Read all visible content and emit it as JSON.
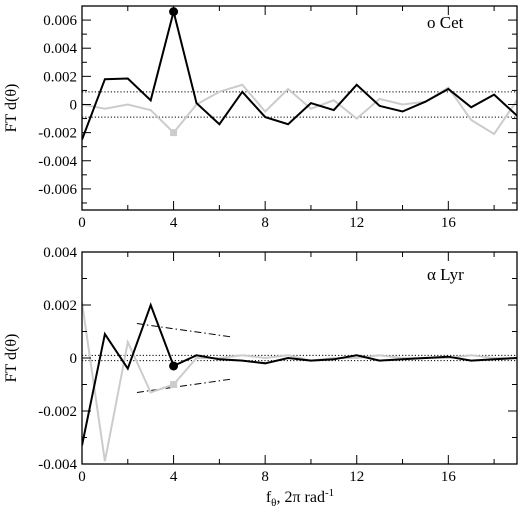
{
  "chart_data": [
    {
      "type": "line",
      "annotation": "o Cet",
      "ylabel": "FT d(θ)",
      "xlabel": "",
      "xlim": [
        0,
        19
      ],
      "ylim": [
        -0.0075,
        0.007
      ],
      "xticks": [
        0,
        4,
        8,
        12,
        16
      ],
      "yticks": [
        -0.006,
        -0.004,
        -0.002,
        0,
        0.002,
        0.004,
        0.006
      ],
      "ytick_labels": [
        "-0.006",
        "-0.004",
        "-0.002",
        "0",
        "0.002",
        "0.004",
        "0.006"
      ],
      "xtick_labels": [
        "0",
        "4",
        "8",
        "12",
        "16"
      ],
      "hlines": [
        0.0009,
        -0.0009
      ],
      "series": [
        {
          "color": "#000000",
          "x": [
            0,
            1,
            2,
            3,
            4,
            5,
            6,
            7,
            8,
            9,
            10,
            11,
            12,
            13,
            14,
            15,
            16,
            17,
            18,
            19
          ],
          "y": [
            -0.0025,
            0.0018,
            0.00185,
            0.0003,
            0.0066,
            0.0001,
            -0.0014,
            0.0009,
            -0.0009,
            -0.0014,
            0.0001,
            -0.0004,
            0.0014,
            -0.0001,
            -0.0005,
            0.0002,
            0.0011,
            -0.0002,
            0.0007,
            -0.0008
          ]
        },
        {
          "color": "#cccccc",
          "x": [
            0,
            1,
            2,
            3,
            4,
            5,
            6,
            7,
            8,
            9,
            10,
            11,
            12,
            13,
            14,
            15,
            16,
            17,
            18,
            19
          ],
          "y": [
            0.0,
            -0.0003,
            0.0,
            -0.0004,
            -0.002,
            0.0,
            0.0009,
            0.0014,
            -0.0005,
            0.0011,
            -0.0003,
            0.0003,
            -0.001,
            0.0004,
            0.0,
            0.0002,
            0.0012,
            -0.0011,
            -0.0021,
            0.0003
          ]
        }
      ],
      "markers": [
        {
          "x": 4,
          "y": 0.0066,
          "shape": "circle",
          "color": "#000000"
        },
        {
          "x": 4,
          "y": -0.002,
          "shape": "square",
          "color": "#cccccc"
        }
      ]
    },
    {
      "type": "line",
      "annotation": "α Lyr",
      "ylabel": "FT d(θ)",
      "xlabel": "f_θ, 2π rad^-1",
      "xlabel_parts": {
        "main": "f",
        "sub": "θ",
        "rest": ", 2π rad",
        "sup": "-1"
      },
      "xlim": [
        0,
        19
      ],
      "ylim": [
        -0.004,
        0.004
      ],
      "xticks": [
        0,
        4,
        8,
        12,
        16
      ],
      "yticks": [
        -0.004,
        -0.002,
        0,
        0.002,
        0.004
      ],
      "ytick_labels": [
        "-0.004",
        "-0.002",
        "0",
        "0.002",
        "0.004"
      ],
      "xtick_labels": [
        "0",
        "4",
        "8",
        "12",
        "16"
      ],
      "hlines": [
        0.0001,
        -0.0001
      ],
      "series": [
        {
          "color": "#000000",
          "x": [
            0,
            1,
            2,
            3,
            4,
            5,
            6,
            7,
            8,
            9,
            10,
            11,
            12,
            13,
            14,
            15,
            16,
            17,
            18,
            19
          ],
          "y": [
            -0.0033,
            0.0009,
            -0.0004,
            0.002,
            -0.0003,
            0.0001,
            -5e-05,
            -0.0001,
            -0.0002,
            0.0,
            -0.0001,
            -5e-05,
            0.0001,
            -0.0001,
            -5e-05,
            0.0,
            5e-05,
            -0.0001,
            -5e-05,
            0.0
          ]
        },
        {
          "color": "#cccccc",
          "x": [
            0,
            1,
            2,
            3,
            4,
            5,
            6,
            7,
            8,
            9,
            10,
            11,
            12,
            13,
            14,
            15,
            16,
            17,
            18,
            19
          ],
          "y": [
            0.0021,
            -0.0039,
            0.0006,
            -0.0013,
            -0.001,
            0.0,
            0.0,
            0.0001,
            0.0,
            0.0001,
            -0.0001,
            0.0,
            0.0,
            0.0001,
            0.0,
            0.0,
            0.0,
            0.0001,
            0.0,
            0.0
          ]
        }
      ],
      "markers": [
        {
          "x": 4,
          "y": -0.0003,
          "shape": "circle",
          "color": "#000000"
        },
        {
          "x": 4,
          "y": -0.001,
          "shape": "square",
          "color": "#cccccc"
        }
      ],
      "dashdot_lines": [
        {
          "x": [
            2.4,
            6.5
          ],
          "y": [
            0.0013,
            0.0008
          ]
        },
        {
          "x": [
            2.4,
            6.5
          ],
          "y": [
            -0.0013,
            -0.0008
          ]
        }
      ]
    }
  ]
}
